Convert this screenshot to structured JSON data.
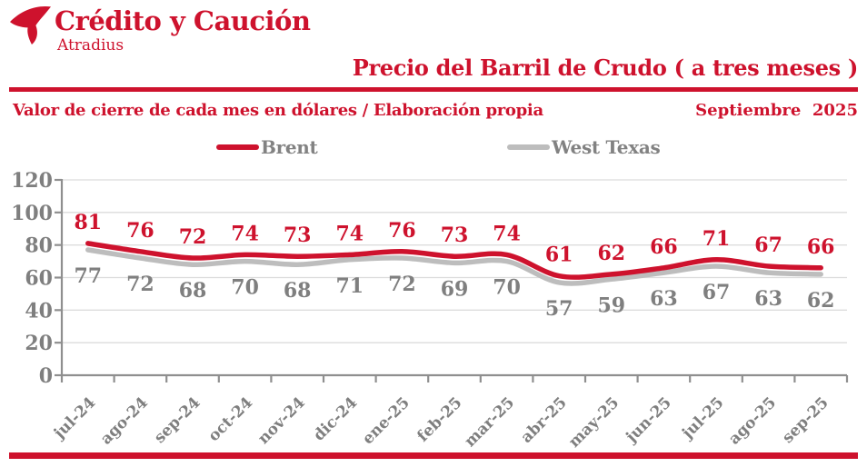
{
  "brand": {
    "name": "Crédito y Caución",
    "subname": "Atradius"
  },
  "header": {
    "title": "Precio del Barril de Crudo ( a tres meses )",
    "subtitle": "Valor de cierre de cada mes en dólares / Elaboración propia",
    "date": "Septiembre  2025"
  },
  "colors": {
    "red": "#CE122D",
    "gray_line": "#BDBDBD",
    "gray_text": "#7F7F7F",
    "axis": "#8F8F8F",
    "grid": "#DCDCDC"
  },
  "chart_data": {
    "type": "line",
    "categories": [
      "jul-24",
      "ago-24",
      "sep-24",
      "oct-24",
      "nov-24",
      "dic-24",
      "ene-25",
      "feb-25",
      "mar-25",
      "abr-25",
      "may-25",
      "jun-25",
      "jul-25",
      "ago-25",
      "sep-25"
    ],
    "series": [
      {
        "name": "Brent",
        "color": "#CE122D",
        "values": [
          81,
          76,
          72,
          74,
          73,
          74,
          76,
          73,
          74,
          61,
          62,
          66,
          71,
          67,
          66
        ]
      },
      {
        "name": "West Texas",
        "color": "#BDBDBD",
        "values": [
          77,
          72,
          68,
          70,
          68,
          71,
          72,
          69,
          70,
          57,
          59,
          63,
          67,
          63,
          62
        ]
      }
    ],
    "ylabel": "",
    "xlabel": "",
    "ylim": [
      0,
      120
    ],
    "ytick_step": 20,
    "grid": true,
    "legend_position": "top",
    "smooth": true
  }
}
